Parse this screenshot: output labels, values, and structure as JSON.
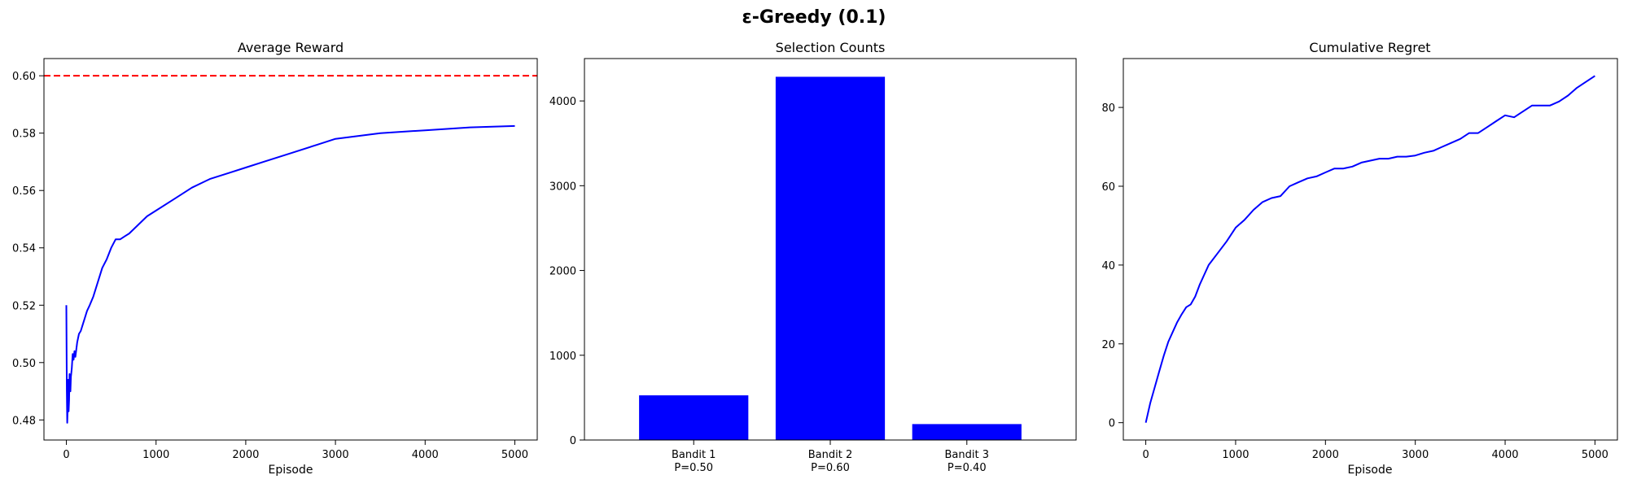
{
  "figure": {
    "suptitle": "ε-Greedy (0.1)"
  },
  "chart_data": [
    {
      "type": "line",
      "title": "Average Reward",
      "xlabel": "Episode",
      "ylabel": "",
      "xlim": [
        -250,
        5250
      ],
      "ylim": [
        0.473,
        0.606
      ],
      "xticks": [
        0,
        1000,
        2000,
        3000,
        4000,
        5000
      ],
      "xtick_labels": [
        "0",
        "1000",
        "2000",
        "3000",
        "4000",
        "5000"
      ],
      "yticks": [
        0.48,
        0.5,
        0.52,
        0.54,
        0.56,
        0.58,
        0.6
      ],
      "ytick_labels": [
        "0.48",
        "0.50",
        "0.52",
        "0.54",
        "0.56",
        "0.58",
        "0.60"
      ],
      "grid": false,
      "reference_line": {
        "orientation": "horizontal",
        "y": 0.6,
        "color": "#ff0000",
        "style": "dashed"
      },
      "series": [
        {
          "color": "#0000ff",
          "x": [
            0,
            5,
            10,
            15,
            20,
            25,
            30,
            35,
            40,
            45,
            50,
            60,
            70,
            80,
            90,
            100,
            120,
            140,
            160,
            180,
            200,
            230,
            260,
            300,
            350,
            400,
            450,
            500,
            550,
            600,
            650,
            700,
            800,
            900,
            1000,
            1200,
            1400,
            1600,
            1800,
            2000,
            2200,
            2500,
            2800,
            3000,
            3500,
            4000,
            4500,
            5000
          ],
          "y": [
            0.52,
            0.49,
            0.479,
            0.485,
            0.494,
            0.483,
            0.487,
            0.496,
            0.492,
            0.49,
            0.495,
            0.498,
            0.503,
            0.501,
            0.504,
            0.502,
            0.507,
            0.51,
            0.511,
            0.513,
            0.515,
            0.518,
            0.52,
            0.523,
            0.528,
            0.533,
            0.536,
            0.54,
            0.543,
            0.543,
            0.544,
            0.545,
            0.548,
            0.551,
            0.553,
            0.557,
            0.561,
            0.564,
            0.566,
            0.568,
            0.57,
            0.573,
            0.576,
            0.578,
            0.58,
            0.581,
            0.582,
            0.5825
          ]
        }
      ]
    },
    {
      "type": "bar",
      "title": "Selection Counts",
      "xlabel": "",
      "ylabel": "",
      "ylim": [
        0,
        4500
      ],
      "yticks": [
        0,
        1000,
        2000,
        3000,
        4000
      ],
      "ytick_labels": [
        "0",
        "1000",
        "2000",
        "3000",
        "4000"
      ],
      "grid": false,
      "color": "#0000ff",
      "categories": [
        "Bandit 1\nP=0.50",
        "Bandit 2\nP=0.60",
        "Bandit 3\nP=0.40"
      ],
      "values": [
        527,
        4285,
        188
      ]
    },
    {
      "type": "line",
      "title": "Cumulative Regret",
      "xlabel": "Episode",
      "ylabel": "",
      "xlim": [
        -250,
        5250
      ],
      "ylim": [
        -4.4,
        92.4
      ],
      "xticks": [
        0,
        1000,
        2000,
        3000,
        4000,
        5000
      ],
      "xtick_labels": [
        "0",
        "1000",
        "2000",
        "3000",
        "4000",
        "5000"
      ],
      "yticks": [
        0,
        20,
        40,
        60,
        80
      ],
      "ytick_labels": [
        "0",
        "20",
        "40",
        "60",
        "80"
      ],
      "grid": false,
      "series": [
        {
          "color": "#0000ff",
          "x": [
            0,
            50,
            100,
            150,
            200,
            250,
            300,
            350,
            400,
            450,
            500,
            550,
            600,
            650,
            700,
            800,
            900,
            1000,
            1100,
            1200,
            1300,
            1400,
            1500,
            1600,
            1700,
            1800,
            1900,
            2000,
            2100,
            2200,
            2300,
            2400,
            2500,
            2600,
            2700,
            2800,
            2900,
            3000,
            3100,
            3200,
            3300,
            3400,
            3500,
            3600,
            3700,
            3800,
            3900,
            4000,
            4100,
            4200,
            4300,
            4400,
            4500,
            4600,
            4700,
            4800,
            4900,
            5000
          ],
          "y": [
            0,
            5,
            9,
            13,
            17,
            20.5,
            23,
            25.5,
            27.5,
            29.3,
            30,
            32,
            35,
            37.5,
            40,
            43,
            46,
            49.5,
            51.5,
            54,
            56,
            57,
            57.5,
            60,
            61,
            62,
            62.5,
            63.5,
            64.5,
            64.5,
            65,
            66,
            66.5,
            67,
            67,
            67.5,
            67.5,
            67.8,
            68.5,
            69,
            70,
            71,
            72,
            73.5,
            73.5,
            75,
            76.5,
            78,
            77.5,
            79,
            80.5,
            80.5,
            80.5,
            81.5,
            83,
            85,
            86.5,
            88
          ]
        }
      ]
    }
  ]
}
